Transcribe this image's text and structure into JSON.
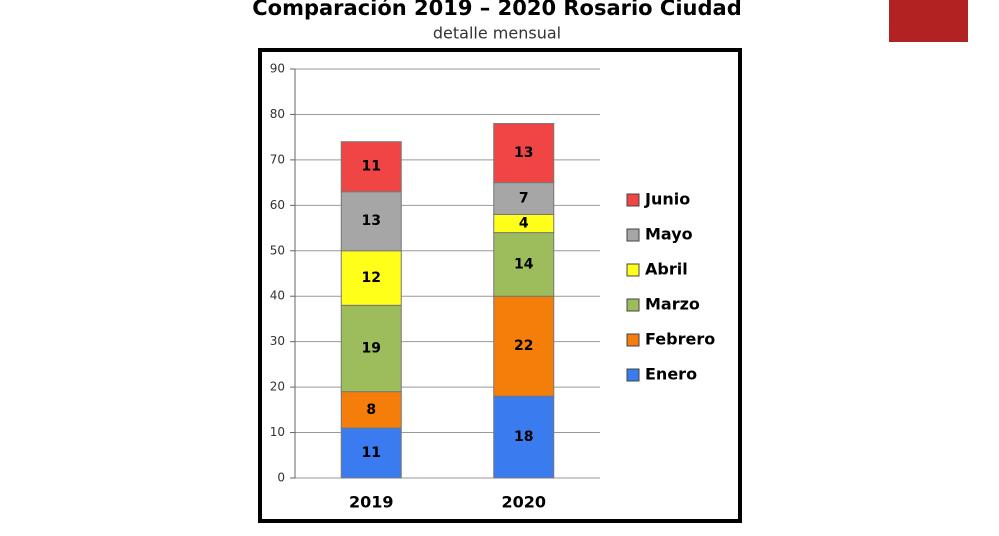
{
  "chart_data": {
    "type": "stacked_bar",
    "title": "Comparación 2019 – 2020 Rosario Ciudad",
    "subtitle": "detalle mensual",
    "categories": [
      "2019",
      "2020"
    ],
    "series": [
      {
        "name": "Enero",
        "color": "#3b7bf0",
        "values": [
          11,
          18
        ]
      },
      {
        "name": "Febrero",
        "color": "#f57e0a",
        "values": [
          8,
          22
        ]
      },
      {
        "name": "Marzo",
        "color": "#9dbd5c",
        "values": [
          19,
          14
        ]
      },
      {
        "name": "Abril",
        "color": "#ffff1a",
        "values": [
          12,
          4
        ]
      },
      {
        "name": "Mayo",
        "color": "#a6a6a6",
        "values": [
          13,
          7
        ]
      },
      {
        "name": "Junio",
        "color": "#f04545",
        "values": [
          11,
          13
        ]
      }
    ],
    "ylim": [
      0,
      90
    ],
    "yticks": [
      0,
      10,
      20,
      30,
      40,
      50,
      60,
      70,
      80,
      90
    ],
    "grid": true
  }
}
